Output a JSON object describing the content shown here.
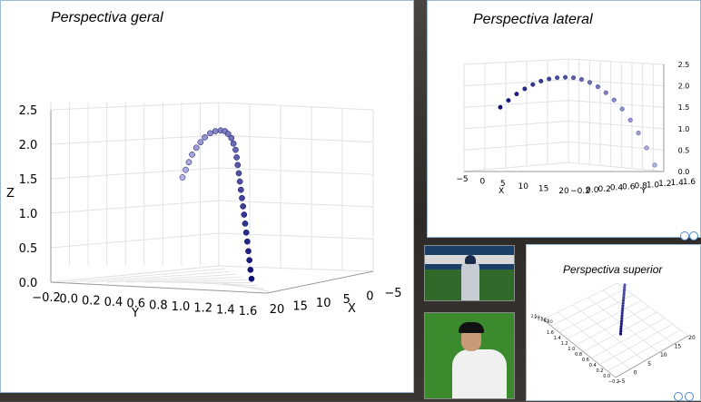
{
  "panels": {
    "general_title": "Perspectiva geral",
    "lateral_title": "Perspectiva lateral",
    "top_title": "Perspectiva superior"
  },
  "chart_data": [
    {
      "type": "scatter",
      "title": "Perspectiva geral",
      "xlabel": "Y",
      "ylabel": "Z",
      "xlabel2": "X",
      "x_ticks": [
        "−0.2",
        "0.0",
        "0.2",
        "0.4",
        "0.6",
        "0.8",
        "1.0",
        "1.2",
        "1.4",
        "1.6"
      ],
      "x2_ticks": [
        "20",
        "15",
        "10",
        "5",
        "0",
        "−5"
      ],
      "z_ticks": [
        "0.0",
        "0.5",
        "1.0",
        "1.5",
        "2.0",
        "2.5"
      ],
      "zlim": [
        0,
        2.5
      ],
      "grid": true,
      "trajectory": {
        "y": [
          0.0,
          0.03,
          0.06,
          0.09,
          0.13,
          0.17,
          0.21,
          0.26,
          0.31,
          0.36,
          0.4,
          0.43,
          0.46,
          0.48,
          0.5,
          0.51,
          0.52,
          0.53,
          0.54,
          0.55,
          0.56,
          0.57,
          0.58,
          0.59,
          0.6,
          0.61,
          0.62,
          0.63,
          0.64,
          0.65
        ],
        "z": [
          1.52,
          1.63,
          1.74,
          1.85,
          1.95,
          2.03,
          2.1,
          2.16,
          2.19,
          2.2,
          2.19,
          2.15,
          2.09,
          2.01,
          1.92,
          1.81,
          1.7,
          1.58,
          1.46,
          1.34,
          1.22,
          1.1,
          0.98,
          0.85,
          0.72,
          0.59,
          0.45,
          0.32,
          0.18,
          0.05
        ]
      }
    },
    {
      "type": "scatter",
      "title": "Perspectiva lateral",
      "xlabel": "X",
      "ylabel": "Y",
      "x_ticks": [
        "−5",
        "0",
        "5",
        "10",
        "15",
        "20"
      ],
      "y_ticks": [
        "−0.2",
        "0.0",
        "0.2",
        "0.4",
        "0.6",
        "0.8",
        "1.0",
        "1.2",
        "1.4",
        "1.6"
      ],
      "z_ticks": [
        "0.0",
        "0.5",
        "1.0",
        "1.5",
        "2.0",
        "2.5"
      ],
      "zlim": [
        0,
        2.5
      ],
      "grid": true,
      "trajectory": {
        "x": [
          0.0,
          1.0,
          2.0,
          3.0,
          4.0,
          5.0,
          6.0,
          7.0,
          8.0,
          9.0,
          10.0,
          11.0,
          12.0,
          13.0,
          14.0,
          15.0,
          16.0,
          17.0,
          18.0,
          19.0
        ],
        "z": [
          1.5,
          1.66,
          1.81,
          1.93,
          2.03,
          2.11,
          2.16,
          2.19,
          2.2,
          2.19,
          2.15,
          2.08,
          1.98,
          1.84,
          1.67,
          1.46,
          1.2,
          0.9,
          0.55,
          0.15
        ]
      }
    },
    {
      "type": "scatter",
      "title": "Perspectiva superior",
      "x_ticks": [
        "−5",
        "0",
        "5",
        "10",
        "15",
        "20"
      ],
      "y_ticks": [
        "−0.2",
        "0.0",
        "0.2",
        "0.4",
        "0.6",
        "0.8",
        "1.0",
        "1.2",
        "1.4",
        "1.6"
      ],
      "z_ticks": [
        "2.5",
        "2.0",
        "1.5",
        "1.0",
        "0.5",
        "0.0"
      ],
      "grid": true,
      "trajectory": {
        "x": [
          0,
          1,
          2,
          3,
          4,
          5,
          6,
          7,
          8,
          9,
          10,
          11,
          12,
          13,
          14,
          15,
          16,
          17,
          18,
          19
        ],
        "y": [
          0.0,
          0.04,
          0.08,
          0.12,
          0.16,
          0.2,
          0.24,
          0.28,
          0.32,
          0.36,
          0.4,
          0.43,
          0.46,
          0.49,
          0.52,
          0.55,
          0.58,
          0.61,
          0.63,
          0.65
        ]
      }
    }
  ]
}
